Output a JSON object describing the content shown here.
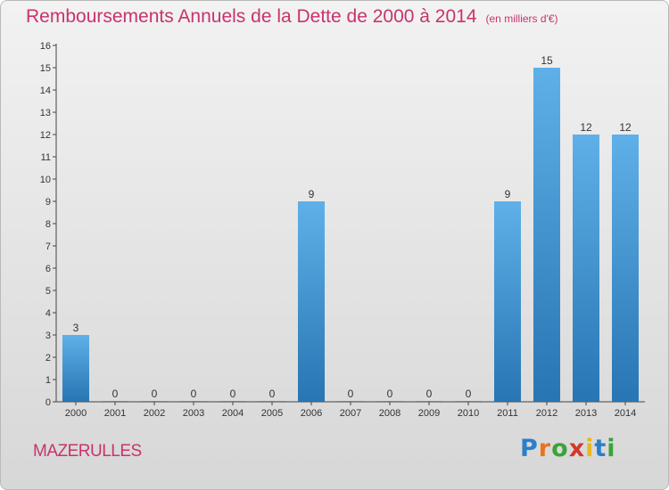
{
  "title": "Remboursements Annuels de la Dette de 2000 à 2014",
  "unit_note": "(en milliers d'€)",
  "commune": "MAZERULLES",
  "brand": "Proxiti",
  "colors": {
    "title": "#c8336d",
    "bar_light": "#5fb0e8",
    "bar_dark": "#2775b3"
  },
  "chart_data": {
    "type": "bar",
    "title": "Remboursements Annuels de la Dette de 2000 à 2014",
    "xlabel": "",
    "ylabel": "",
    "categories": [
      "2000",
      "2001",
      "2002",
      "2003",
      "2004",
      "2005",
      "2006",
      "2007",
      "2008",
      "2009",
      "2010",
      "2011",
      "2012",
      "2013",
      "2014"
    ],
    "values": [
      3,
      0,
      0,
      0,
      0,
      0,
      9,
      0,
      0,
      0,
      0,
      9,
      15,
      12,
      12
    ],
    "ylim": [
      0,
      16
    ],
    "yticks": [
      0,
      1,
      2,
      3,
      4,
      5,
      6,
      7,
      8,
      9,
      10,
      11,
      12,
      13,
      14,
      15,
      16
    ],
    "grid": false,
    "legend": "none"
  }
}
